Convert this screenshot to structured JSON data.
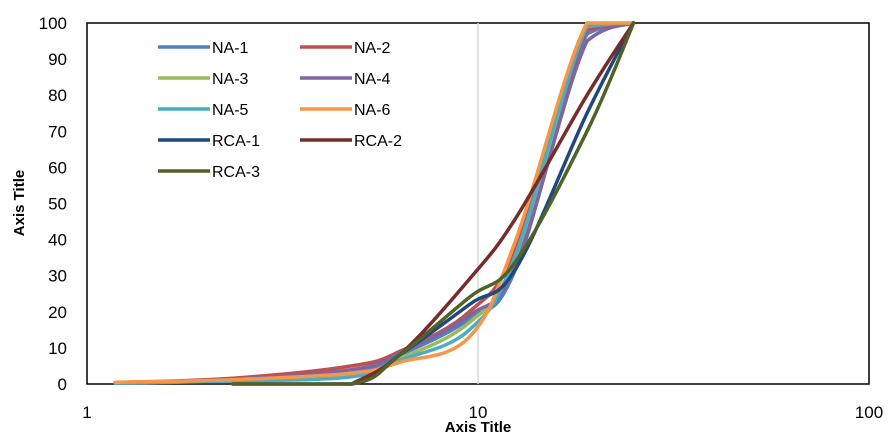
{
  "chart_data": {
    "type": "line",
    "xlabel": "Axis Title",
    "ylabel": "Axis Title",
    "xscale": "log",
    "xlim": [
      1,
      100
    ],
    "ylim": [
      0,
      100
    ],
    "xticks": [
      1,
      10,
      100
    ],
    "xtick_labels": [
      "1",
      "10",
      "100"
    ],
    "yticks": [
      0,
      10,
      20,
      30,
      40,
      50,
      60,
      70,
      80,
      90,
      100
    ],
    "ytick_labels": [
      "0",
      "10",
      "20",
      "30",
      "40",
      "50",
      "60",
      "70",
      "80",
      "90",
      "100"
    ],
    "grid": "vertical major gridline at x = 10",
    "legend": "top-left, inside plot area, 2 columns",
    "series": [
      {
        "name": "NA-1",
        "color": "#4F81BD",
        "x": [
          1.18,
          2.36,
          4.75,
          6.3,
          9.5,
          12.5,
          19,
          25
        ],
        "y": [
          0.3,
          1.0,
          3.0,
          8.0,
          18.0,
          32.0,
          97.0,
          100.0
        ]
      },
      {
        "name": "NA-2",
        "color": "#C0504D",
        "x": [
          1.18,
          2.36,
          4.75,
          6.3,
          9.5,
          12.5,
          19,
          25
        ],
        "y": [
          0.4,
          1.6,
          5.0,
          9.0,
          20.0,
          38.0,
          98.0,
          100.0
        ]
      },
      {
        "name": "NA-3",
        "color": "#9BBB59",
        "x": [
          1.18,
          2.36,
          4.75,
          6.3,
          9.5,
          12.5,
          19,
          25
        ],
        "y": [
          0.3,
          0.9,
          2.5,
          7.0,
          17.0,
          35.0,
          99.0,
          100.0
        ]
      },
      {
        "name": "NA-4",
        "color": "#8064A2",
        "x": [
          1.18,
          2.36,
          4.75,
          6.3,
          9.5,
          12.5,
          19,
          25
        ],
        "y": [
          0.4,
          1.3,
          4.0,
          8.5,
          19.0,
          33.0,
          95.0,
          100.0
        ]
      },
      {
        "name": "NA-5",
        "color": "#4BACC6",
        "x": [
          1.18,
          2.36,
          4.75,
          6.3,
          9.5,
          12.5,
          19,
          25
        ],
        "y": [
          0.3,
          0.8,
          2.0,
          6.5,
          15.0,
          36.0,
          99.0,
          100.0
        ]
      },
      {
        "name": "NA-6",
        "color": "#F79646",
        "x": [
          1.18,
          2.36,
          4.75,
          6.3,
          9.5,
          12.5,
          19,
          25
        ],
        "y": [
          0.5,
          1.2,
          3.0,
          6.0,
          13.0,
          40.0,
          100.0,
          100.0
        ]
      },
      {
        "name": "RCA-1",
        "color": "#1F497D",
        "x": [
          2.36,
          4.75,
          6.3,
          9.5,
          12.5,
          19,
          25
        ],
        "y": [
          0.0,
          0.0,
          8.0,
          22.0,
          32.0,
          75.0,
          100.0
        ]
      },
      {
        "name": "RCA-2",
        "color": "#772C2A",
        "x": [
          4.75,
          6.3,
          9.5,
          12.5,
          19,
          25
        ],
        "y": [
          0.0,
          8.0,
          29.0,
          46.0,
          80.0,
          100.0
        ]
      },
      {
        "name": "RCA-3",
        "color": "#4F6228",
        "x": [
          2.36,
          4.75,
          6.3,
          9.5,
          12.5,
          19,
          25
        ],
        "y": [
          0.0,
          0.0,
          8.0,
          24.0,
          34.0,
          70.0,
          100.0
        ]
      }
    ]
  }
}
